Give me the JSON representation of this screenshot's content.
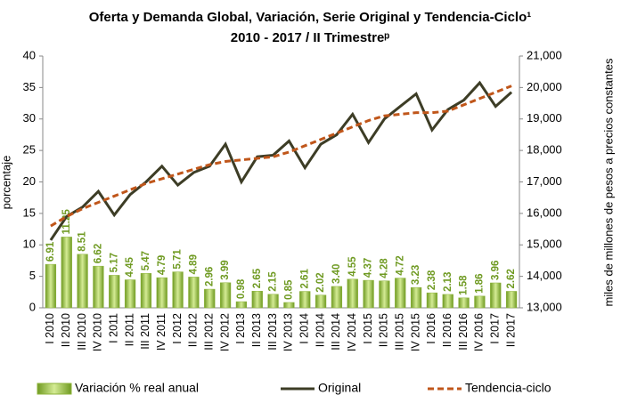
{
  "chart_data": {
    "type": "bar",
    "title": "Oferta y Demanda Global, Variación, Serie Original y Tendencia-Ciclo¹",
    "subtitle": "2010 - 2017 / II Trimestreᵖ",
    "ylabel": "porcentaje",
    "y2label": "miles de millones de pesos a precios constantes",
    "categories": [
      "I 2010",
      "II 2010",
      "III 2010",
      "IV 2010",
      "I 2011",
      "II 2011",
      "III 2011",
      "IV 2011",
      "I 2012",
      "II 2012",
      "III 2012",
      "IV 2012",
      "I 2013",
      "II 2013",
      "III 2013",
      "IV 2013",
      "I 2014",
      "II 2014",
      "III 2014",
      "IV 2014",
      "I 2015",
      "II 2015",
      "III 2015",
      "IV 2015",
      "I 2016",
      "II 2016",
      "III 2016",
      "IV 2016",
      "I 2017",
      "II 2017"
    ],
    "series": [
      {
        "name": "Variación % real anual",
        "type": "bar",
        "color": "#8db33a",
        "values": [
          6.91,
          11.25,
          8.51,
          6.62,
          5.17,
          4.45,
          5.47,
          4.79,
          5.71,
          4.89,
          2.96,
          3.99,
          0.98,
          2.65,
          2.15,
          0.85,
          2.61,
          2.02,
          3.4,
          4.55,
          4.37,
          4.28,
          4.72,
          3.23,
          2.38,
          2.13,
          1.58,
          1.86,
          3.96,
          2.62
        ],
        "value_labels": [
          "6.91",
          "11.25",
          "8.51",
          "6.62",
          "5.17",
          "4.45",
          "5.47",
          "4.79",
          "5.71",
          "4.89",
          "2.96",
          "3.99",
          "0.98",
          "2.65",
          "2.15",
          "0.85",
          "2.61",
          "2.02",
          "3.40",
          "4.55",
          "4.37",
          "4.28",
          "4.72",
          "3.23",
          "2.38",
          "2.13",
          "1.58",
          "1.86",
          "3.96",
          "2.62"
        ]
      },
      {
        "name": "Original",
        "type": "line",
        "axis": "y2",
        "color": "#3d3d26",
        "values": [
          15150,
          15900,
          16200,
          16700,
          15950,
          16600,
          17000,
          17500,
          16900,
          17300,
          17500,
          18200,
          17000,
          17800,
          17850,
          18300,
          17450,
          18200,
          18500,
          19150,
          18250,
          19000,
          19400,
          19800,
          18650,
          19300,
          19600,
          20150,
          19400,
          19850
        ]
      },
      {
        "name": "Tendencia-ciclo",
        "type": "line",
        "dashed": true,
        "axis": "y2",
        "color": "#c0561a",
        "values": [
          15600,
          15900,
          16150,
          16350,
          16550,
          16750,
          16950,
          17100,
          17250,
          17400,
          17550,
          17650,
          17700,
          17750,
          17800,
          17950,
          18150,
          18350,
          18550,
          18750,
          18950,
          19100,
          19150,
          19200,
          19200,
          19250,
          19450,
          19650,
          19850,
          20050
        ]
      }
    ],
    "ylim": [
      0,
      40
    ],
    "yticks": [
      0,
      5,
      10,
      15,
      20,
      25,
      30,
      35,
      40
    ],
    "y2lim": [
      13000,
      21000
    ],
    "y2ticks": [
      {
        "value": 13000,
        "label": "13,000"
      },
      {
        "value": 14000,
        "label": "14,000"
      },
      {
        "value": 15000,
        "label": "15,000"
      },
      {
        "value": 16000,
        "label": "16,000"
      },
      {
        "value": 17000,
        "label": "17,000"
      },
      {
        "value": 18000,
        "label": "18,000"
      },
      {
        "value": 19000,
        "label": "19,000"
      },
      {
        "value": 20000,
        "label": "20,000"
      },
      {
        "value": 21000,
        "label": "21,000"
      }
    ],
    "grid": false
  }
}
